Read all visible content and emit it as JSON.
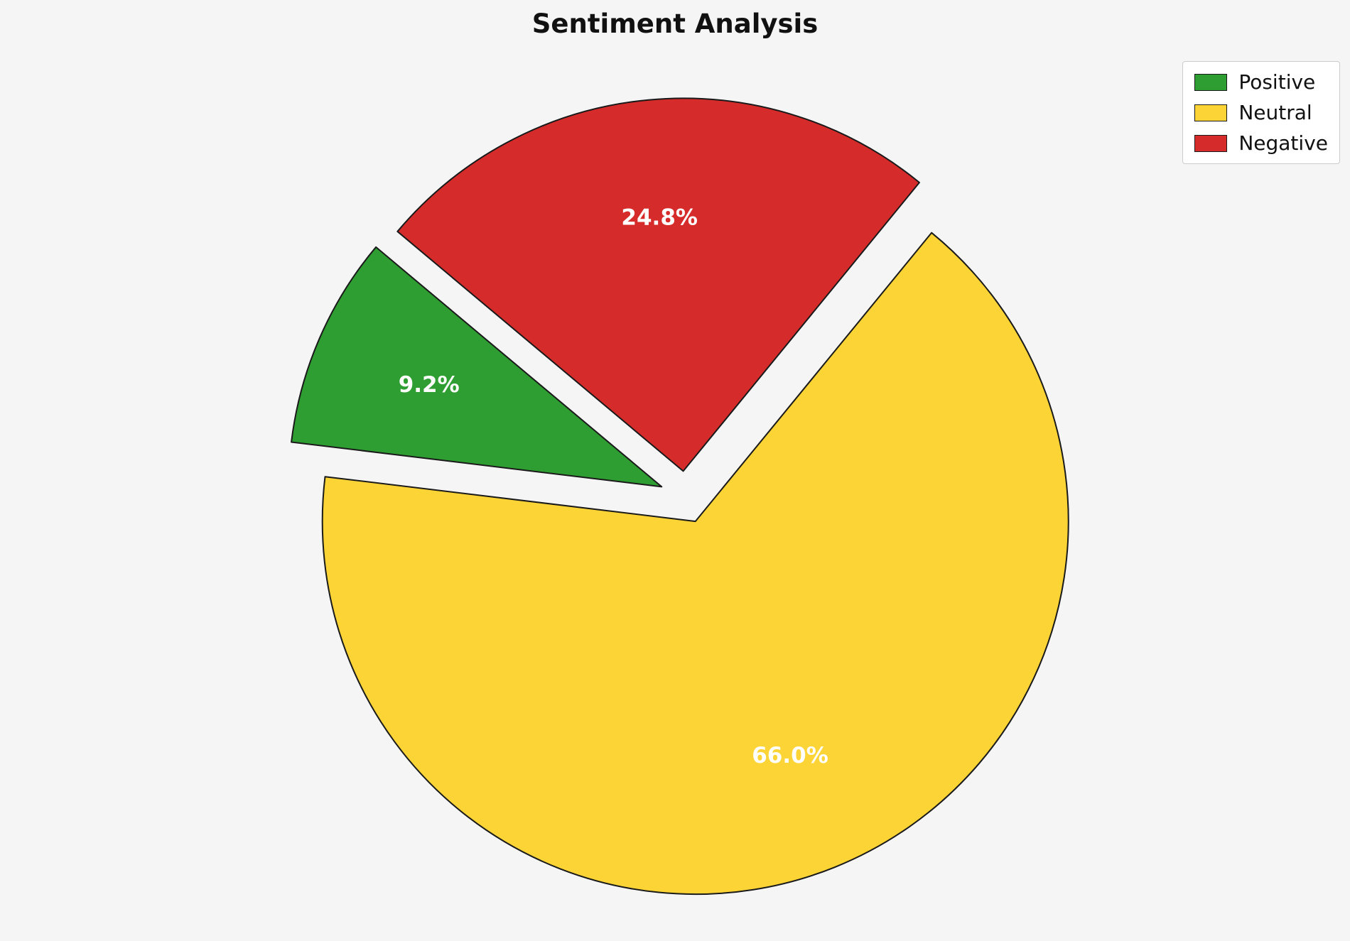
{
  "title": "Sentiment Analysis",
  "background_color": "#f5f5f5",
  "chart_data": {
    "type": "pie",
    "title": "Sentiment Analysis",
    "labels": [
      "Positive",
      "Neutral",
      "Negative"
    ],
    "values": [
      9.2,
      66.0,
      24.8
    ],
    "percent_labels": [
      "9.2%",
      "66.0%",
      "24.8%"
    ],
    "colors": [
      "#2f9e32",
      "#fdd435",
      "#d62b2b"
    ],
    "start_angle": 140,
    "counterclockwise": true,
    "explode": 0.07,
    "edge_color": "#1a1a1a",
    "label_color": "#ffffff",
    "label_radius_fraction": 0.68,
    "legend_position": "upper right"
  },
  "legend": {
    "items": [
      {
        "label": "Positive",
        "color": "#2f9e32"
      },
      {
        "label": "Neutral",
        "color": "#fdd435"
      },
      {
        "label": "Negative",
        "color": "#d62b2b"
      }
    ]
  }
}
